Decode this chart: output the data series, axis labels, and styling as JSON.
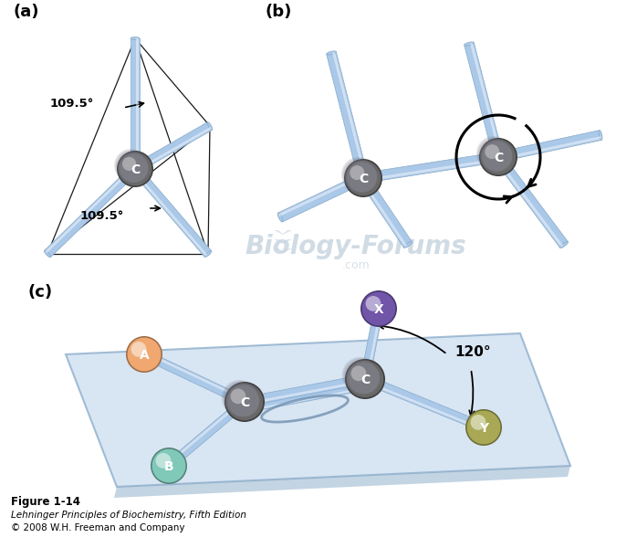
{
  "fig_label": "Figure 1-14",
  "fig_caption": "Lehninger Principles of Biochemistry, Fifth Edition",
  "fig_copyright": "© 2008 W.H. Freeman and Company",
  "panel_a_label": "(a)",
  "panel_b_label": "(b)",
  "panel_c_label": "(c)",
  "angle_a1": "109.5°",
  "angle_a2": "109.5°",
  "angle_c": "120°",
  "bond_color": "#aac8e8",
  "bond_highlight": "#d8eaf8",
  "bond_shadow": "#88aac8",
  "carbon_base": "#686868",
  "carbon_hi": "#909090",
  "carbon_dark": "#404040",
  "atom_A_color": "#f0a870",
  "atom_B_color": "#80c8b8",
  "atom_X_color": "#7055a8",
  "atom_Y_color": "#a8a855",
  "plane_color": "#ccddf0",
  "plane_edge": "#88aac8",
  "watermark_color": "#c8d5e0",
  "bg": "#ffffff"
}
